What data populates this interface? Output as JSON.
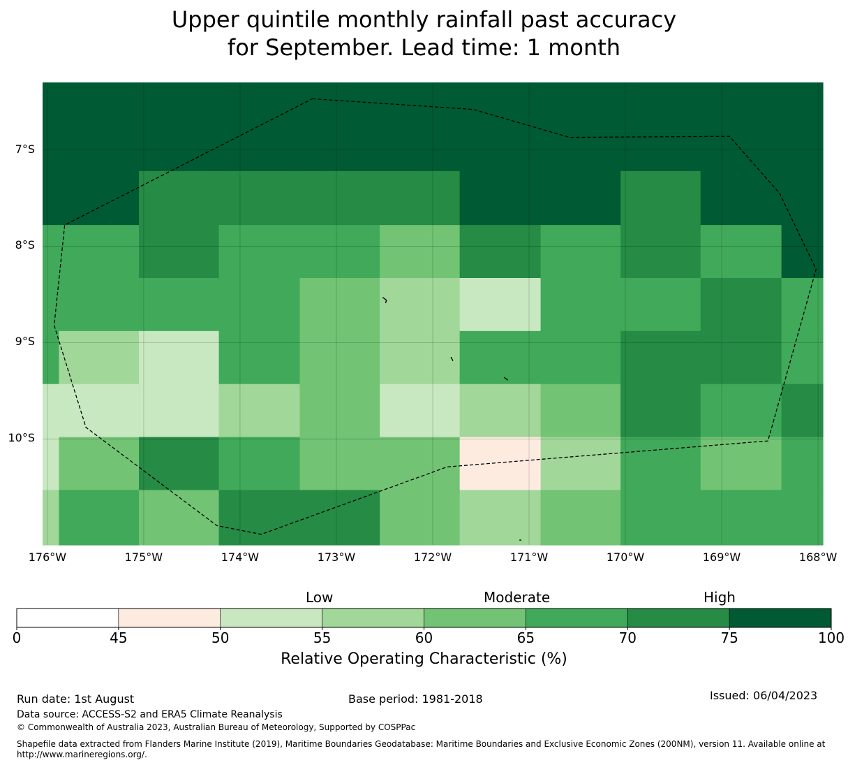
{
  "title_line1": "Upper quintile monthly rainfall past accuracy",
  "title_line2": "for September. Lead time: 1 month",
  "map": {
    "lon_range": [
      -176.05,
      -167.95
    ],
    "lat_range": [
      -11.1,
      -6.3
    ],
    "lat_ticks": [
      {
        "value": -7,
        "label": "7°S"
      },
      {
        "value": -8,
        "label": "8°S"
      },
      {
        "value": -9,
        "label": "9°S"
      },
      {
        "value": -10,
        "label": "10°S"
      }
    ],
    "lon_ticks": [
      {
        "value": -176,
        "label": "176°W"
      },
      {
        "value": -175,
        "label": "175°W"
      },
      {
        "value": -174,
        "label": "174°W"
      },
      {
        "value": -173,
        "label": "173°W"
      },
      {
        "value": -172,
        "label": "172°W"
      },
      {
        "value": -171,
        "label": "171°W"
      },
      {
        "value": -170,
        "label": "170°W"
      },
      {
        "value": -169,
        "label": "169°W"
      },
      {
        "value": -168,
        "label": "168°W"
      }
    ],
    "grid_lon_edges": [
      -176.05,
      -175.88,
      -175.05,
      -174.22,
      -173.38,
      -172.55,
      -171.72,
      -170.88,
      -170.05,
      -169.22,
      -168.38,
      -167.95
    ],
    "grid_lat_edges": [
      -6.3,
      -7.22,
      -7.78,
      -8.33,
      -8.88,
      -9.43,
      -9.98,
      -10.53,
      -11.1
    ],
    "grid_class_rows": [
      [
        7,
        7,
        7,
        7,
        7,
        7,
        7,
        7,
        7,
        7,
        7
      ],
      [
        7,
        7,
        6,
        6,
        6,
        6,
        7,
        7,
        6,
        7,
        7
      ],
      [
        5,
        5,
        6,
        5,
        5,
        4,
        6,
        5,
        6,
        5,
        7
      ],
      [
        5,
        5,
        5,
        5,
        4,
        3,
        2,
        5,
        5,
        6,
        5
      ],
      [
        5,
        3,
        2,
        5,
        4,
        3,
        5,
        5,
        6,
        6,
        5
      ],
      [
        2,
        2,
        2,
        3,
        4,
        2,
        3,
        4,
        6,
        5,
        6
      ],
      [
        2,
        4,
        6,
        5,
        4,
        4,
        1,
        3,
        5,
        4,
        5
      ],
      [
        3,
        5,
        4,
        6,
        6,
        4,
        3,
        4,
        5,
        5,
        5
      ]
    ],
    "eez_boundary": [
      [
        -173.25,
        -6.47
      ],
      [
        -171.58,
        -6.58
      ],
      [
        -170.58,
        -6.87
      ],
      [
        -168.92,
        -6.86
      ],
      [
        -168.4,
        -7.45
      ],
      [
        -168.02,
        -8.24
      ],
      [
        -168.52,
        -10.02
      ],
      [
        -171.85,
        -10.29
      ],
      [
        -173.78,
        -10.99
      ],
      [
        -174.24,
        -10.9
      ],
      [
        -175.6,
        -9.88
      ],
      [
        -175.93,
        -8.82
      ],
      [
        -175.82,
        -7.78
      ],
      [
        -173.25,
        -6.47
      ]
    ],
    "islands": [
      [
        [
          -172.52,
          -8.53
        ],
        [
          -172.48,
          -8.56
        ],
        [
          -172.49,
          -8.59
        ]
      ],
      [
        [
          -171.81,
          -9.15
        ],
        [
          -171.79,
          -9.19
        ]
      ],
      [
        [
          -171.26,
          -9.36
        ],
        [
          -171.22,
          -9.39
        ]
      ],
      [
        [
          -171.1,
          -11.05
        ],
        [
          -171.08,
          -11.05
        ]
      ]
    ]
  },
  "colorbar": {
    "boundaries": [
      0,
      45,
      50,
      55,
      60,
      65,
      70,
      75,
      100
    ],
    "tick_labels": [
      "0",
      "45",
      "50",
      "55",
      "60",
      "65",
      "70",
      "75",
      "100"
    ],
    "colors": [
      "#ffffff",
      "#fdebe0",
      "#c8e8c1",
      "#a1d799",
      "#72c374",
      "#40a95a",
      "#258b45",
      "#005a33"
    ],
    "category_labels": {
      "low": "Low",
      "moderate": "Moderate",
      "high": "High"
    },
    "label": "Relative Operating Characteristic (%)"
  },
  "footer": {
    "run_date": "Run date: 1st August",
    "base_period": "Base period: 1981-2018",
    "issued": "Issued: 06/04/2023",
    "data_source": "Data source: ACCESS-S2 and ERA5 Climate Reanalysis",
    "copyright": "© Commonwealth of Australia 2023, Australian Bureau of Meteorology, Supported by COSPPac",
    "shapefile_line1": "Shapefile data extracted from Flanders Marine Institute (2019), Maritime Boundaries Geodatabase: Maritime Boundaries and Exclusive Economic Zones (200NM), version 11. Available online at",
    "shapefile_line2": "http://www.marineregions.org/."
  }
}
